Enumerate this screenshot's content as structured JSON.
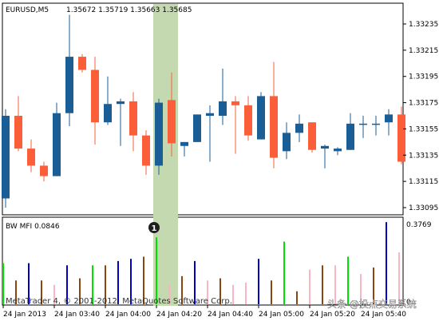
{
  "header": {
    "symbol": "EURUSD,M5",
    "ohlc": "1.35672 1.35719 1.35663 1.35685"
  },
  "indicator": {
    "name": "BW MFI 0.0846",
    "max_label": "0.3769",
    "min_label": "0"
  },
  "marker": {
    "label": "1"
  },
  "watermark": {
    "left": "MetaTrader 4, © 2001-2012, MetaQuotes Software Corp.",
    "right": "头条 @投点交易系统"
  },
  "colors": {
    "bull": "#1b5e96",
    "bear": "#fa5f3a",
    "highlight": "#c5d9b0",
    "mfi_green": "#00e000",
    "mfi_blue": "#0000c8",
    "mfi_brown": "#8b4513",
    "mfi_pink": "#f7b6c2"
  },
  "chart_data": [
    {
      "type": "candlestick",
      "title": "EURUSD,M5",
      "price_ticks": [
        "1.33235",
        "1.33215",
        "1.33195",
        "1.33175",
        "1.33155",
        "1.33135",
        "1.33115",
        "1.33095"
      ],
      "ylim": [
        1.33093,
        1.33251
      ],
      "x_ticks": [
        "24 Jan 2013",
        "24 Jan 03:40",
        "24 Jan 04:00",
        "24 Jan 04:20",
        "24 Jan 04:40",
        "24 Jan 05:00",
        "24 Jan 05:20",
        "24 Jan 05:40"
      ],
      "highlighted_candle": 12,
      "candles": [
        {
          "o": 1.33102,
          "h": 1.3317,
          "l": 1.33095,
          "c": 1.33165
        },
        {
          "o": 1.33165,
          "h": 1.3318,
          "l": 1.33138,
          "c": 1.3314
        },
        {
          "o": 1.3314,
          "h": 1.33147,
          "l": 1.33122,
          "c": 1.33127
        },
        {
          "o": 1.33127,
          "h": 1.3313,
          "l": 1.33115,
          "c": 1.33119
        },
        {
          "o": 1.33119,
          "h": 1.33175,
          "l": 1.33119,
          "c": 1.33167
        },
        {
          "o": 1.33167,
          "h": 1.33242,
          "l": 1.33157,
          "c": 1.3321
        },
        {
          "o": 1.3321,
          "h": 1.33212,
          "l": 1.33198,
          "c": 1.332
        },
        {
          "o": 1.332,
          "h": 1.3321,
          "l": 1.33143,
          "c": 1.3316
        },
        {
          "o": 1.3316,
          "h": 1.33195,
          "l": 1.33158,
          "c": 1.33174
        },
        {
          "o": 1.33174,
          "h": 1.33178,
          "l": 1.33142,
          "c": 1.33176
        },
        {
          "o": 1.33176,
          "h": 1.33183,
          "l": 1.33138,
          "c": 1.3315
        },
        {
          "o": 1.3315,
          "h": 1.33154,
          "l": 1.3312,
          "c": 1.33127
        },
        {
          "o": 1.33127,
          "h": 1.33178,
          "l": 1.3312,
          "c": 1.33175
        },
        {
          "o": 1.33177,
          "h": 1.33198,
          "l": 1.33134,
          "c": 1.33144
        },
        {
          "o": 1.33142,
          "h": 1.33145,
          "l": 1.33134,
          "c": 1.33145
        },
        {
          "o": 1.33145,
          "h": 1.33166,
          "l": 1.33145,
          "c": 1.33166
        },
        {
          "o": 1.33165,
          "h": 1.33173,
          "l": 1.3313,
          "c": 1.33167
        },
        {
          "o": 1.33165,
          "h": 1.33201,
          "l": 1.33158,
          "c": 1.33176
        },
        {
          "o": 1.33176,
          "h": 1.3318,
          "l": 1.33136,
          "c": 1.33173
        },
        {
          "o": 1.33173,
          "h": 1.3318,
          "l": 1.33146,
          "c": 1.3315
        },
        {
          "o": 1.33147,
          "h": 1.33183,
          "l": 1.33147,
          "c": 1.3318
        },
        {
          "o": 1.3318,
          "h": 1.33206,
          "l": 1.33125,
          "c": 1.33133
        },
        {
          "o": 1.33138,
          "h": 1.3316,
          "l": 1.33132,
          "c": 1.33152
        },
        {
          "o": 1.33152,
          "h": 1.33166,
          "l": 1.33145,
          "c": 1.33159
        },
        {
          "o": 1.3316,
          "h": 1.3316,
          "l": 1.33137,
          "c": 1.33139
        },
        {
          "o": 1.3314,
          "h": 1.33143,
          "l": 1.33125,
          "c": 1.33142
        },
        {
          "o": 1.33138,
          "h": 1.33141,
          "l": 1.33135,
          "c": 1.3314
        },
        {
          "o": 1.33139,
          "h": 1.33167,
          "l": 1.33139,
          "c": 1.33159
        },
        {
          "o": 1.33159,
          "h": 1.33165,
          "l": 1.33148,
          "c": 1.33159
        },
        {
          "o": 1.33159,
          "h": 1.33165,
          "l": 1.3315,
          "c": 1.33159
        },
        {
          "o": 1.3316,
          "h": 1.3317,
          "l": 1.3315,
          "c": 1.33166
        },
        {
          "o": 1.33166,
          "h": 1.33172,
          "l": 1.33128,
          "c": 1.3313
        }
      ]
    },
    {
      "type": "bar",
      "title": "BW MFI 0.0846",
      "ylim": [
        0,
        0.3769
      ],
      "values": [
        0.19,
        0.11,
        0.19,
        0.11,
        0.09,
        0.18,
        0.12,
        0.18,
        0.18,
        0.2,
        0.21,
        0.22,
        0.31,
        0.09,
        0.13,
        0.2,
        0.11,
        0.12,
        0.09,
        0.1,
        0.21,
        0.11,
        0.29,
        0.06,
        0.16,
        0.18,
        0.18,
        0.22,
        0.14,
        0.17,
        0.38,
        0.24
      ],
      "colors": [
        "green",
        "brown",
        "blue",
        "brown",
        "pink",
        "blue",
        "brown",
        "green",
        "brown",
        "blue",
        "blue",
        "brown",
        "green",
        "pink",
        "brown",
        "blue",
        "pink",
        "brown",
        "pink",
        "pink",
        "blue",
        "brown",
        "green",
        "brown",
        "pink",
        "brown",
        "pink",
        "green",
        "pink",
        "brown",
        "blue",
        "pink"
      ]
    }
  ]
}
